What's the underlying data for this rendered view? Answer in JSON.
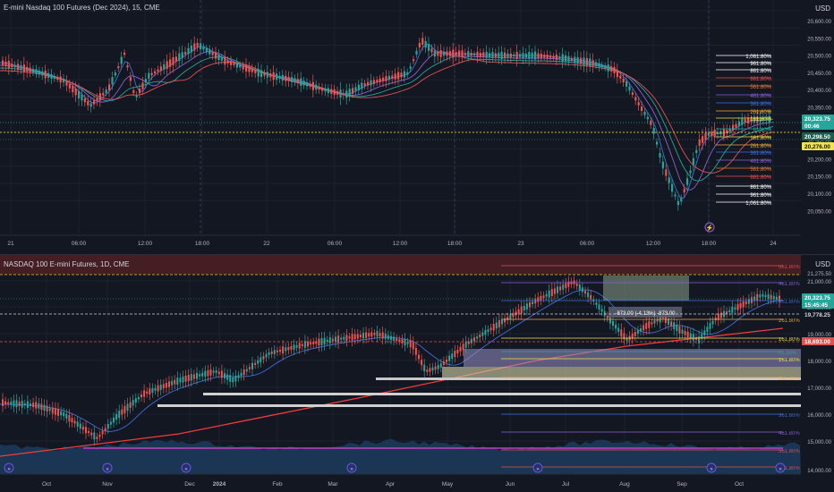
{
  "top_chart": {
    "title": "E-mini Nasdaq 100 Futures (Dec 2024), 15, CME",
    "currency": "USD",
    "y_ticks": [
      "20,600.00",
      "20,550.00",
      "20,500.00",
      "20,450.00",
      "20,400.00",
      "20,350.00",
      "20,300.00",
      "20,250.00",
      "20,200.00",
      "20,150.00",
      "20,100.00",
      "20,050.00"
    ],
    "x_labels": [
      "21",
      "06:00",
      "12:00",
      "18:00",
      "22",
      "06:00",
      "12:00",
      "18:00",
      "23",
      "06:00",
      "12:00",
      "18:00",
      "24"
    ],
    "fib_labels": [
      {
        "text": "1,061.80%",
        "color": "#ffffff"
      },
      {
        "text": "961.80%",
        "color": "#ffffff"
      },
      {
        "text": "861.80%",
        "color": "#ffffff"
      },
      {
        "text": "661.80%",
        "color": "#e05252"
      },
      {
        "text": "561.80%",
        "color": "#e07a3c"
      },
      {
        "text": "461.80%",
        "color": "#8d5fd3"
      },
      {
        "text": "361.80%",
        "color": "#3f6fd8"
      },
      {
        "text": "261.80%",
        "color": "#f2a83b"
      },
      {
        "text": "161.80%",
        "color": "#f2e34b"
      },
      {
        "text": "61.80%",
        "color": "#26a69a"
      },
      {
        "text": "161.80%",
        "color": "#f2e34b"
      },
      {
        "text": "261.80%",
        "color": "#f2a83b"
      },
      {
        "text": "361.80%",
        "color": "#3f6fd8"
      },
      {
        "text": "461.80%",
        "color": "#8d5fd3"
      },
      {
        "text": "561.80%",
        "color": "#e07a3c"
      },
      {
        "text": "661.80%",
        "color": "#e05252"
      },
      {
        "text": "861.80%",
        "color": "#ffffff"
      },
      {
        "text": "961.80%",
        "color": "#ffffff"
      },
      {
        "text": "1,061.80%",
        "color": "#ffffff"
      }
    ],
    "price_tags": [
      {
        "text": "20,323.75",
        "bg": "#26a69a",
        "fg": "#ffffff"
      },
      {
        "text": "00:46",
        "bg": "#26a69a",
        "fg": "#ffffff"
      },
      {
        "text": "20,298.50",
        "bg": "#1b5e4e",
        "fg": "#ffffff"
      },
      {
        "text": "20,276.00",
        "bg": "#f2e34b",
        "fg": "#131722"
      }
    ]
  },
  "bottom_chart": {
    "title": "NASDAQ 100 E-mini Futures, 1D, CME",
    "currency": "USD",
    "y_ticks": [
      "21,000.00",
      "20,000.00",
      "19,000.00",
      "18,000.00",
      "17,000.00",
      "16,000.00",
      "15,000.00",
      "14,000.00"
    ],
    "x_labels": [
      "Oct",
      "Nov",
      "Dec",
      "2024",
      "Feb",
      "Mar",
      "Apr",
      "May",
      "Jun",
      "Jul",
      "Aug",
      "Sep",
      "Oct"
    ],
    "fib_labels": [
      {
        "text": "561.80%",
        "color": "#e05252"
      },
      {
        "text": "461.80%",
        "color": "#8d5fd3"
      },
      {
        "text": "361.80%",
        "color": "#3f6fd8"
      },
      {
        "text": "261.80%",
        "color": "#f2a83b"
      },
      {
        "text": "161.80%",
        "color": "#f2e34b"
      },
      {
        "text": "61.80%",
        "color": "#26a69a"
      },
      {
        "text": "161.80%",
        "color": "#f2e34b"
      },
      {
        "text": "261.80%",
        "color": "#f2a83b"
      },
      {
        "text": "361.80%",
        "color": "#3f6fd8"
      },
      {
        "text": "461.80%",
        "color": "#8d5fd3"
      },
      {
        "text": "561.80%",
        "color": "#e05252"
      },
      {
        "text": "661.80%",
        "color": "#e05252"
      }
    ],
    "measure_label": "-873.00 (-4.13%) -873.00",
    "price_tags": [
      {
        "text": "20,323.75",
        "bg": "#26a69a",
        "fg": "#ffffff"
      },
      {
        "text": "15:45:45",
        "bg": "#26a69a",
        "fg": "#ffffff"
      },
      {
        "text": "19,778.25",
        "bg": "#131722",
        "fg": "#d1d4dc"
      },
      {
        "text": "18,693.00",
        "bg": "#e05252",
        "fg": "#ffffff"
      }
    ],
    "top_tag": "21,275.50"
  },
  "colors": {
    "background": "#131722",
    "up": "#26a69a",
    "down": "#ef5350",
    "grid": "#1e222d"
  }
}
